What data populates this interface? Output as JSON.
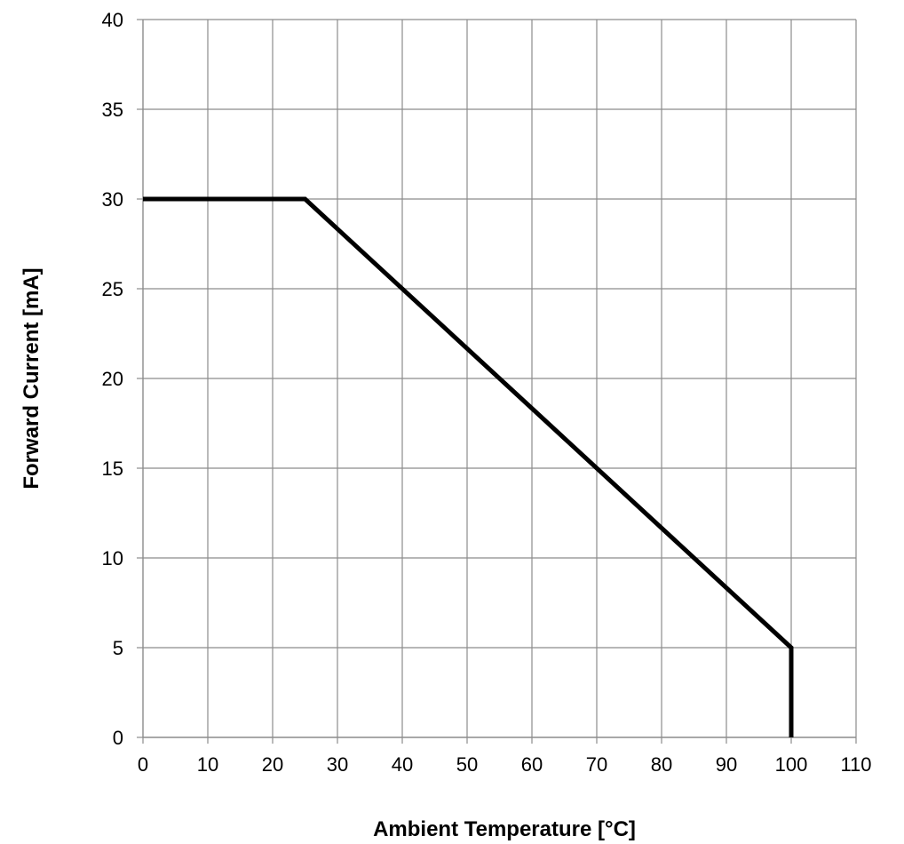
{
  "chart_data": {
    "type": "line",
    "title": "",
    "xlabel": "Ambient Temperature [°C]",
    "ylabel": "Forward Current [mA]",
    "xlim": [
      0,
      110
    ],
    "ylim": [
      0,
      40
    ],
    "x_ticks": [
      0,
      10,
      20,
      30,
      40,
      50,
      60,
      70,
      80,
      90,
      100,
      110
    ],
    "y_ticks": [
      0,
      5,
      10,
      15,
      20,
      25,
      30,
      35,
      40
    ],
    "grid": true,
    "legend": "none",
    "series": [
      {
        "color": "#000000",
        "x": [
          0,
          25,
          100,
          100
        ],
        "y": [
          30,
          30,
          5,
          0
        ]
      }
    ]
  }
}
